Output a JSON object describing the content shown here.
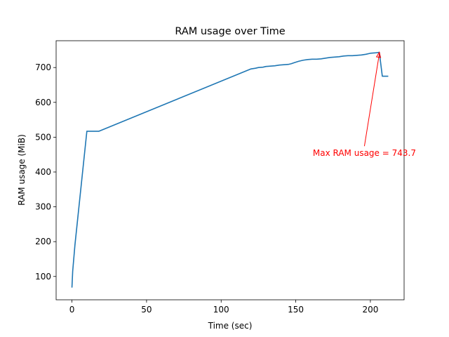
{
  "chart_data": {
    "type": "line",
    "title": "RAM usage over Time",
    "xlabel": "Time (sec)",
    "ylabel": "RAM usage (MiB)",
    "xlim": [
      -10.6,
      222.6
    ],
    "ylim": [
      33,
      777
    ],
    "xticks": [
      0,
      50,
      100,
      150,
      200
    ],
    "yticks": [
      100,
      200,
      300,
      400,
      500,
      600,
      700
    ],
    "grid": false,
    "series_color": "#1f77b4",
    "annotation_color": "#ff0000",
    "series": [
      {
        "x": [
          0,
          0.5,
          2,
          10,
          18,
          120,
          123,
          125,
          128,
          130,
          133,
          136,
          139,
          142,
          145,
          147,
          149,
          152,
          155,
          158,
          161,
          164,
          167,
          170,
          173,
          176,
          179,
          182,
          185,
          188,
          191,
          194,
          197,
          200,
          203,
          206,
          208,
          212
        ],
        "y": [
          68,
          115,
          190,
          517,
          517,
          696,
          698,
          700,
          701,
          703,
          704,
          705,
          707,
          708,
          709,
          711,
          714,
          718,
          721,
          723,
          724,
          724,
          725,
          727,
          729,
          730,
          731,
          733,
          734,
          734,
          735,
          736,
          738,
          741,
          742,
          743.7,
          675,
          675
        ]
      }
    ],
    "annotation": {
      "text": "Max RAM usage = 743.7",
      "point": [
        206,
        743.7
      ],
      "text_pos": [
        196,
        446
      ]
    }
  }
}
